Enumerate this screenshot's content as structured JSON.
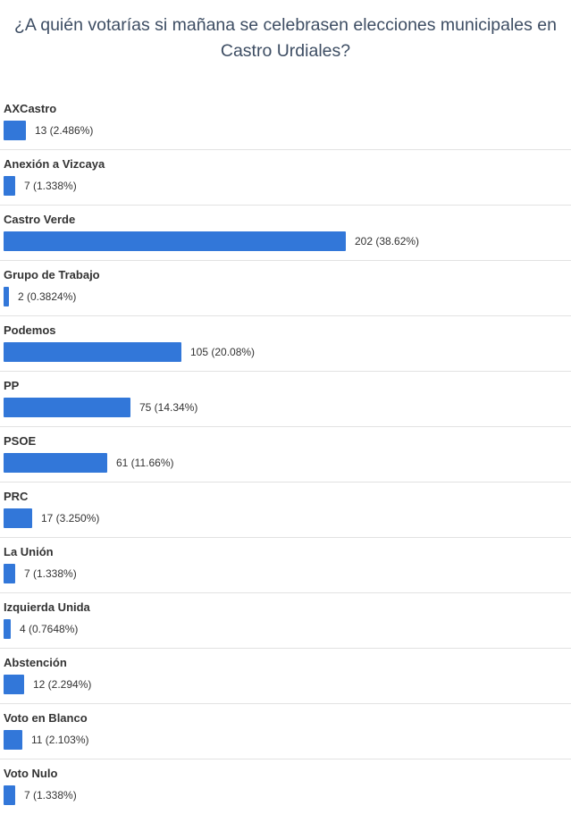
{
  "chart_data": {
    "type": "bar",
    "orientation": "horizontal",
    "title": "¿A quién votarías si mañana se celebrasen elecciones municipales en Castro Urdiales?",
    "bar_color": "#3277d9",
    "categories": [
      "AXCastro",
      "Anexión a Vizcaya",
      "Castro Verde",
      "Grupo de Trabajo",
      "Podemos",
      "PP",
      "PSOE",
      "PRC",
      "La Unión",
      "Izquierda Unida",
      "Abstención",
      "Voto en Blanco",
      "Voto Nulo"
    ],
    "values": [
      13,
      7,
      202,
      2,
      105,
      75,
      61,
      17,
      7,
      4,
      12,
      11,
      7
    ],
    "value_labels": [
      "13 (2.486%)",
      "7 (1.338%)",
      "202 (38.62%)",
      "2 (0.3824%)",
      "105 (20.08%)",
      "75 (14.34%)",
      "61 (11.66%)",
      "17 (3.250%)",
      "7 (1.338%)",
      "4 (0.7648%)",
      "12 (2.294%)",
      "11 (2.103%)",
      "7 (1.338%)"
    ]
  }
}
